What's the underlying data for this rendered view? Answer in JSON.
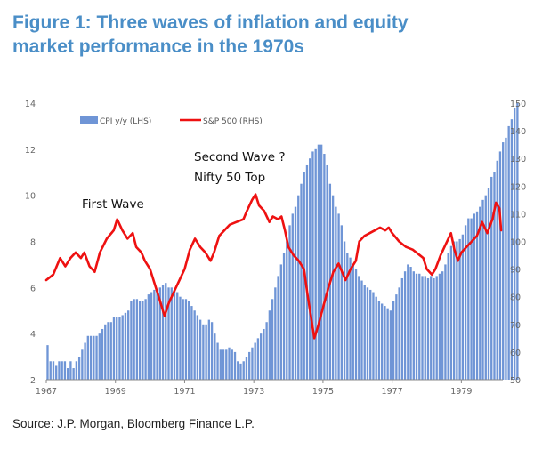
{
  "title": {
    "line1": "Figure 1: Three waves of inflation and equity",
    "line2": "market performance in the 1970s"
  },
  "source": "Source: J.P. Morgan, Bloomberg Finance L.P.",
  "colors": {
    "title": "#4a8ec7",
    "bars": "#6f95d6",
    "line": "#ee1111",
    "axis": "#888888"
  },
  "chart_data": {
    "type": "bar+line",
    "title": "Figure 1: Three waves of inflation and equity market performance in the 1970s",
    "x_tick_labels": [
      "1967",
      "1969",
      "1971",
      "1973",
      "1975",
      "1977",
      "1979"
    ],
    "x_tick_years": [
      1967,
      1969,
      1971,
      1973,
      1975,
      1977,
      1979
    ],
    "x_range": [
      1967,
      1980.2
    ],
    "y_left": {
      "label": "CPI y/y (LHS)",
      "range": [
        2,
        14
      ],
      "ticks": [
        2,
        4,
        6,
        8,
        10,
        12,
        14
      ]
    },
    "y_right": {
      "label": "S&P 500 (RHS)",
      "range": [
        50,
        150
      ],
      "ticks": [
        50,
        60,
        70,
        80,
        90,
        100,
        110,
        120,
        130,
        140,
        150
      ]
    },
    "legend": [
      "CPI y/y (LHS)",
      "S&P 500 (RHS)"
    ],
    "legend_position": "top-left",
    "annotations": [
      {
        "text": "First Wave",
        "year": 1968.4,
        "value_rhs": 114
      },
      {
        "text": "Second Wave ?",
        "year": 1972.2,
        "value_rhs": 128
      },
      {
        "text": "Nifty 50 Top",
        "year": 1972.2,
        "value_rhs": 121
      }
    ],
    "series": [
      {
        "name": "CPI y/y (LHS)",
        "axis": "left",
        "kind": "bar",
        "frequency": "monthly",
        "x_start": 1967.0,
        "values": [
          3.5,
          2.8,
          2.8,
          2.6,
          2.8,
          2.8,
          2.8,
          2.5,
          2.8,
          2.5,
          2.8,
          3.0,
          3.3,
          3.6,
          3.9,
          3.9,
          3.9,
          3.9,
          4.0,
          4.2,
          4.4,
          4.5,
          4.5,
          4.7,
          4.7,
          4.7,
          4.8,
          4.9,
          5.0,
          5.4,
          5.5,
          5.5,
          5.4,
          5.4,
          5.5,
          5.7,
          5.8,
          5.9,
          5.9,
          6.0,
          6.1,
          6.2,
          6.0,
          6.0,
          5.9,
          5.8,
          5.6,
          5.5,
          5.5,
          5.4,
          5.2,
          5.0,
          4.8,
          4.6,
          4.4,
          4.4,
          4.6,
          4.5,
          4.0,
          3.6,
          3.3,
          3.3,
          3.3,
          3.4,
          3.3,
          3.2,
          2.8,
          2.7,
          2.8,
          3.0,
          3.2,
          3.4,
          3.6,
          3.8,
          4.0,
          4.2,
          4.5,
          5.0,
          5.5,
          6.0,
          6.5,
          7.0,
          7.5,
          8.0,
          8.7,
          9.2,
          9.5,
          10.0,
          10.5,
          11.0,
          11.3,
          11.6,
          11.9,
          12.0,
          12.2,
          12.2,
          11.8,
          11.3,
          10.5,
          10.0,
          9.5,
          9.2,
          8.7,
          8.0,
          7.5,
          7.3,
          7.0,
          6.8,
          6.5,
          6.3,
          6.1,
          6.0,
          5.9,
          5.8,
          5.6,
          5.4,
          5.3,
          5.2,
          5.1,
          5.0,
          5.4,
          5.7,
          6.0,
          6.4,
          6.7,
          7.0,
          6.9,
          6.7,
          6.6,
          6.6,
          6.5,
          6.5,
          6.4,
          6.5,
          6.4,
          6.5,
          6.6,
          6.7,
          7.0,
          7.5,
          7.8,
          8.0,
          8.0,
          8.1,
          8.3,
          8.7,
          9.0,
          9.0,
          9.2,
          9.3,
          9.5,
          9.8,
          10.0,
          10.3,
          10.8,
          11.0,
          11.5,
          11.9,
          12.3,
          12.5,
          13.0,
          13.3,
          13.8,
          14.0
        ]
      },
      {
        "name": "S&P 500 (RHS)",
        "axis": "right",
        "kind": "line",
        "points": [
          [
            1967.0,
            86
          ],
          [
            1967.2,
            88
          ],
          [
            1967.4,
            94
          ],
          [
            1967.55,
            91
          ],
          [
            1967.7,
            94
          ],
          [
            1967.85,
            96
          ],
          [
            1968.0,
            94
          ],
          [
            1968.1,
            96
          ],
          [
            1968.25,
            91
          ],
          [
            1968.4,
            89
          ],
          [
            1968.55,
            96
          ],
          [
            1968.75,
            101
          ],
          [
            1968.95,
            104
          ],
          [
            1969.05,
            108
          ],
          [
            1969.2,
            104
          ],
          [
            1969.35,
            101
          ],
          [
            1969.5,
            103
          ],
          [
            1969.6,
            98
          ],
          [
            1969.75,
            96
          ],
          [
            1969.85,
            93
          ],
          [
            1970.0,
            90
          ],
          [
            1970.15,
            84
          ],
          [
            1970.3,
            78
          ],
          [
            1970.42,
            73
          ],
          [
            1970.55,
            78
          ],
          [
            1970.7,
            82
          ],
          [
            1970.85,
            86
          ],
          [
            1971.0,
            90
          ],
          [
            1971.15,
            97
          ],
          [
            1971.3,
            101
          ],
          [
            1971.45,
            98
          ],
          [
            1971.6,
            96
          ],
          [
            1971.75,
            93
          ],
          [
            1971.85,
            96
          ],
          [
            1972.0,
            102
          ],
          [
            1972.15,
            104
          ],
          [
            1972.3,
            106
          ],
          [
            1972.5,
            107
          ],
          [
            1972.7,
            108
          ],
          [
            1972.8,
            111
          ],
          [
            1972.95,
            115
          ],
          [
            1973.05,
            117
          ],
          [
            1973.15,
            113
          ],
          [
            1973.3,
            111
          ],
          [
            1973.45,
            107
          ],
          [
            1973.55,
            109
          ],
          [
            1973.7,
            108
          ],
          [
            1973.8,
            109
          ],
          [
            1973.9,
            104
          ],
          [
            1974.0,
            98
          ],
          [
            1974.15,
            95
          ],
          [
            1974.3,
            93
          ],
          [
            1974.45,
            90
          ],
          [
            1974.55,
            81
          ],
          [
            1974.65,
            73
          ],
          [
            1974.75,
            65
          ],
          [
            1974.85,
            69
          ],
          [
            1975.0,
            76
          ],
          [
            1975.15,
            83
          ],
          [
            1975.3,
            89
          ],
          [
            1975.45,
            92
          ],
          [
            1975.55,
            89
          ],
          [
            1975.65,
            86
          ],
          [
            1975.8,
            90
          ],
          [
            1975.95,
            93
          ],
          [
            1976.05,
            100
          ],
          [
            1976.2,
            102
          ],
          [
            1976.35,
            103
          ],
          [
            1976.5,
            104
          ],
          [
            1976.65,
            105
          ],
          [
            1976.8,
            104
          ],
          [
            1976.9,
            105
          ],
          [
            1977.0,
            103
          ],
          [
            1977.2,
            100
          ],
          [
            1977.4,
            98
          ],
          [
            1977.6,
            97
          ],
          [
            1977.8,
            95
          ],
          [
            1977.9,
            94
          ],
          [
            1978.0,
            90
          ],
          [
            1978.15,
            88
          ],
          [
            1978.25,
            90
          ],
          [
            1978.4,
            95
          ],
          [
            1978.55,
            99
          ],
          [
            1978.7,
            103
          ],
          [
            1978.8,
            97
          ],
          [
            1978.9,
            93
          ],
          [
            1979.0,
            96
          ],
          [
            1979.15,
            98
          ],
          [
            1979.3,
            100
          ],
          [
            1979.45,
            102
          ],
          [
            1979.6,
            107
          ],
          [
            1979.75,
            103
          ],
          [
            1979.9,
            108
          ],
          [
            1980.0,
            114
          ],
          [
            1980.1,
            112
          ],
          [
            1980.15,
            104
          ]
        ]
      }
    ]
  }
}
